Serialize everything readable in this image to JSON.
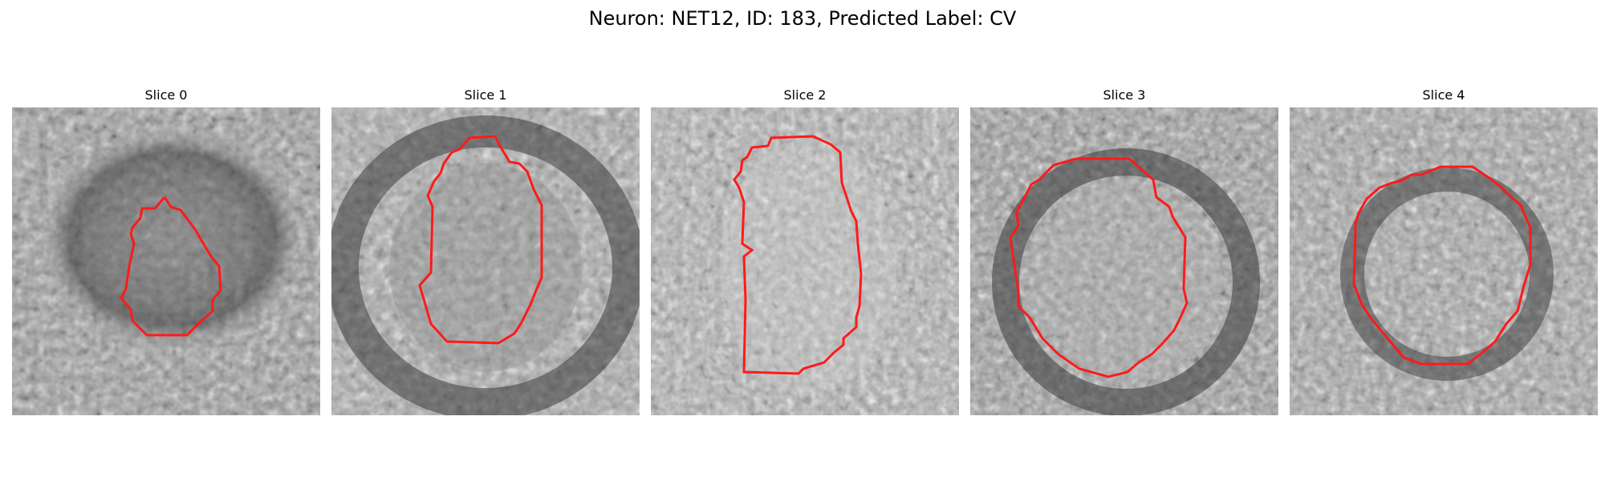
{
  "figure": {
    "title": "Neuron: NET12, ID: 183, Predicted Label: CV"
  },
  "panels": [
    {
      "title": "Slice 0"
    },
    {
      "title": "Slice 1"
    },
    {
      "title": "Slice 2"
    },
    {
      "title": "Slice 3"
    },
    {
      "title": "Slice 4"
    }
  ],
  "colors": {
    "contour": "#ff1a1a",
    "background": "#ffffff"
  }
}
